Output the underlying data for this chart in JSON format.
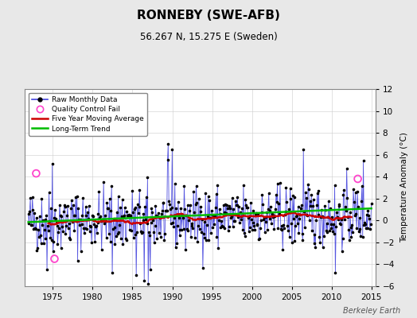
{
  "title": "RONNEBY (SWE-AFB)",
  "subtitle": "56.267 N, 15.275 E (Sweden)",
  "ylabel": "Temperature Anomaly (°C)",
  "credit": "Berkeley Earth",
  "ylim": [
    -6,
    12
  ],
  "yticks": [
    -6,
    -4,
    -2,
    0,
    2,
    4,
    6,
    8,
    10,
    12
  ],
  "xlim": [
    1971.5,
    2015.5
  ],
  "xticks": [
    1975,
    1980,
    1985,
    1990,
    1995,
    2000,
    2005,
    2010,
    2015
  ],
  "bg_color": "#e8e8e8",
  "plot_bg_color": "#ffffff",
  "raw_line_color": "#4444dd",
  "raw_dot_color": "#000000",
  "ma_color": "#cc0000",
  "trend_color": "#00bb00",
  "qc_color": "#ff44cc",
  "seed": 42,
  "n_months": 516,
  "start_year": 1971.917
}
